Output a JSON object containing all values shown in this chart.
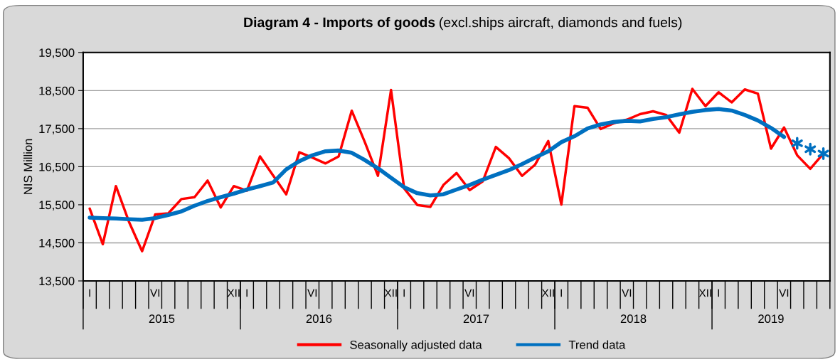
{
  "chart_data": {
    "type": "line",
    "title": "Diagram 4 - Imports of goods",
    "subtitle": "(excl.ships aircraft, diamonds and fuels)",
    "ylabel": "NIS Million",
    "categories": [
      "I",
      null,
      null,
      null,
      null,
      "VI",
      null,
      null,
      null,
      null,
      null,
      "XII",
      "I",
      null,
      null,
      null,
      null,
      "VI",
      null,
      null,
      null,
      null,
      null,
      "XII",
      "I",
      null,
      null,
      null,
      null,
      "VI",
      null,
      null,
      null,
      null,
      null,
      "XII",
      "I",
      null,
      null,
      null,
      null,
      "VI",
      null,
      null,
      null,
      null,
      null,
      "XII",
      "I",
      null,
      null,
      null,
      null,
      "VI",
      null,
      null,
      null
    ],
    "series": [
      {
        "name": "Seasonally adjusted data",
        "color": "#ff0000",
        "values": [
          15400,
          14465,
          15990,
          15050,
          14280,
          15245,
          15275,
          15650,
          15700,
          16135,
          15430,
          15990,
          15870,
          16770,
          16270,
          15775,
          16880,
          16740,
          16585,
          16770,
          17970,
          17145,
          16260,
          18515,
          15930,
          15495,
          15445,
          16020,
          16335,
          15885,
          16115,
          17020,
          16725,
          16260,
          16555,
          17175,
          15505,
          18090,
          18050,
          17490,
          17640,
          17735,
          17880,
          17955,
          17860,
          17395,
          18545,
          18090,
          18455,
          18190,
          18530,
          18420,
          16975,
          17530,
          16800,
          16445,
          16845
        ]
      },
      {
        "name": "Trend data",
        "color": "#0070c0",
        "values": [
          15163,
          15150,
          15140,
          15120,
          15107,
          15150,
          15233,
          15325,
          15475,
          15600,
          15700,
          15793,
          15900,
          15990,
          16085,
          16430,
          16645,
          16800,
          16905,
          16925,
          16865,
          16675,
          16460,
          16210,
          15960,
          15805,
          15745,
          15775,
          15900,
          16020,
          16160,
          16285,
          16410,
          16570,
          16740,
          16905,
          17145,
          17300,
          17505,
          17610,
          17675,
          17705,
          17690,
          17755,
          17800,
          17875,
          17940,
          17990,
          18015,
          17975,
          17860,
          17715,
          17520,
          17280,
          null,
          null,
          null
        ]
      },
      {
        "color": "#0070c0",
        "type": "scatter",
        "marker": "cross",
        "values": [
          null,
          null,
          null,
          null,
          null,
          null,
          null,
          null,
          null,
          null,
          null,
          null,
          null,
          null,
          null,
          null,
          null,
          null,
          null,
          null,
          null,
          null,
          null,
          null,
          null,
          null,
          null,
          null,
          null,
          null,
          null,
          null,
          null,
          null,
          null,
          null,
          null,
          null,
          null,
          null,
          null,
          null,
          null,
          null,
          null,
          null,
          null,
          null,
          null,
          null,
          null,
          null,
          null,
          null,
          17115,
          16960,
          16845
        ]
      }
    ],
    "ylim": [
      13500,
      19500
    ],
    "yticks": [
      {
        "value": 13500,
        "label": "13,500"
      },
      {
        "value": 14500,
        "label": "14,500"
      },
      {
        "value": 15500,
        "label": "15,500"
      },
      {
        "value": 16500,
        "label": "16,500"
      },
      {
        "value": 17500,
        "label": "17,500"
      },
      {
        "value": 18500,
        "label": "18,500"
      },
      {
        "value": 19500,
        "label": "19,500"
      }
    ],
    "grid": "y",
    "legend": "bottom",
    "marker": "none",
    "line_style": "solid",
    "annotations": [
      "2015",
      "2016",
      "2017",
      "2018",
      "2019"
    ]
  }
}
